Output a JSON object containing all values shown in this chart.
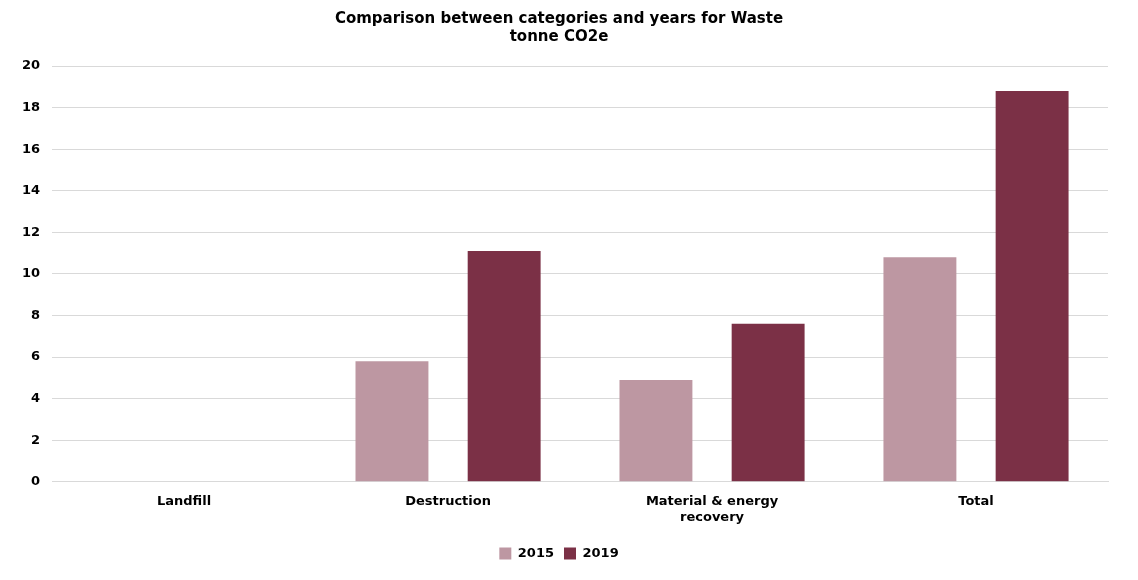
{
  "chart_data": {
    "type": "bar",
    "title": "Comparison between categories and years for Waste\ntonne CO2e",
    "categories": [
      "Landfill",
      "Destruction",
      "Material & energy recovery",
      "Total"
    ],
    "series": [
      {
        "name": "2015",
        "color": "#bd97a2",
        "values": [
          0,
          5.8,
          4.9,
          10.8
        ]
      },
      {
        "name": "2019",
        "color": "#7b3046",
        "values": [
          0,
          11.1,
          7.6,
          18.8
        ]
      }
    ],
    "ylim": [
      0,
      20
    ],
    "yticks": [
      0,
      2,
      4,
      6,
      8,
      10,
      12,
      14,
      16,
      18,
      20
    ],
    "grid": "y",
    "legend": "bottom"
  }
}
